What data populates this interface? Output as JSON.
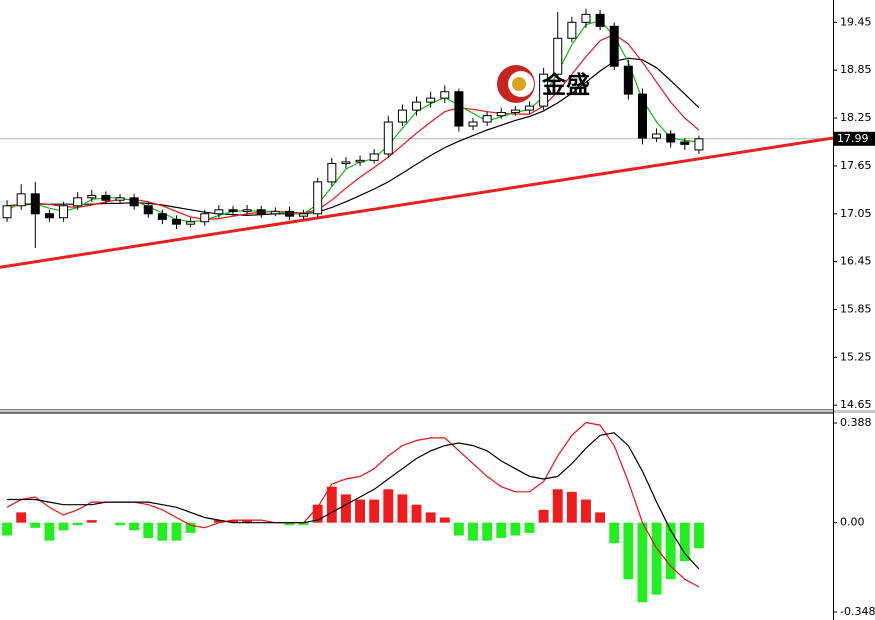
{
  "chart_data": [
    {
      "type": "candlestick",
      "open": [
        17.0,
        17.15,
        17.3,
        17.05,
        17.0,
        17.15,
        17.25,
        17.28,
        17.22,
        17.25,
        17.15,
        17.05,
        16.98,
        16.92,
        16.95,
        17.05,
        17.1,
        17.08,
        17.1,
        17.05,
        17.08,
        17.02,
        17.05,
        17.45,
        17.68,
        17.7,
        17.72,
        17.8,
        18.2,
        18.35,
        18.45,
        18.5,
        18.58,
        18.15,
        18.2,
        18.28,
        18.32,
        18.35,
        18.4,
        18.8,
        19.25,
        19.45,
        19.55,
        19.4,
        18.9,
        18.55,
        18.0,
        18.05,
        17.95,
        17.85
      ],
      "high": [
        17.22,
        17.42,
        17.45,
        17.1,
        17.2,
        17.32,
        17.35,
        17.33,
        17.3,
        17.3,
        17.2,
        17.1,
        17.03,
        17.0,
        17.1,
        17.16,
        17.15,
        17.16,
        17.15,
        17.13,
        17.14,
        17.1,
        17.5,
        17.75,
        17.76,
        17.78,
        17.86,
        18.28,
        18.42,
        18.52,
        18.58,
        18.66,
        18.62,
        18.25,
        18.33,
        18.38,
        18.4,
        18.46,
        18.88,
        19.58,
        19.52,
        19.62,
        19.6,
        19.45,
        18.98,
        18.62,
        18.12,
        18.1,
        18.0,
        18.03
      ],
      "low": [
        16.95,
        17.1,
        16.62,
        16.95,
        16.95,
        17.1,
        17.2,
        17.17,
        17.18,
        17.1,
        17.0,
        16.92,
        16.86,
        16.88,
        16.9,
        17.0,
        17.03,
        17.04,
        17.0,
        17.02,
        16.97,
        16.98,
        17.0,
        17.4,
        17.62,
        17.65,
        17.68,
        17.75,
        18.15,
        18.28,
        18.38,
        18.44,
        18.08,
        18.1,
        18.15,
        18.24,
        18.28,
        18.3,
        18.35,
        18.75,
        19.2,
        19.38,
        19.35,
        18.85,
        18.48,
        17.92,
        17.95,
        17.88,
        17.85,
        17.8
      ],
      "close": [
        17.15,
        17.3,
        17.05,
        17.0,
        17.15,
        17.25,
        17.28,
        17.22,
        17.25,
        17.15,
        17.05,
        16.98,
        16.92,
        16.95,
        17.05,
        17.1,
        17.08,
        17.1,
        17.05,
        17.08,
        17.02,
        17.05,
        17.45,
        17.68,
        17.7,
        17.72,
        17.8,
        18.2,
        18.35,
        18.45,
        18.5,
        18.58,
        18.15,
        18.2,
        18.28,
        18.32,
        18.35,
        18.4,
        18.8,
        19.25,
        19.45,
        19.55,
        19.4,
        18.9,
        18.55,
        18.0,
        18.05,
        17.95,
        17.92,
        17.99
      ],
      "up_color": "#ffffff",
      "down_color": "#000000",
      "overlays": [
        {
          "color": "#000000",
          "values": [
            17.15,
            17.16,
            17.17,
            17.17,
            17.17,
            17.17,
            17.17,
            17.18,
            17.18,
            17.19,
            17.18,
            17.16,
            17.13,
            17.1,
            17.07,
            17.05,
            17.04,
            17.03,
            17.04,
            17.05,
            17.05,
            17.05,
            17.07,
            17.13,
            17.2,
            17.28,
            17.36,
            17.45,
            17.56,
            17.67,
            17.78,
            17.88,
            17.96,
            18.03,
            18.1,
            18.16,
            18.22,
            18.27,
            18.34,
            18.44,
            18.56,
            18.7,
            18.84,
            18.96,
            19.0,
            18.98,
            18.88,
            18.72,
            18.55,
            18.38
          ]
        },
        {
          "color": "#ee1111",
          "values": [
            17.15,
            17.17,
            17.18,
            17.17,
            17.14,
            17.13,
            17.16,
            17.2,
            17.23,
            17.23,
            17.2,
            17.15,
            17.08,
            17.01,
            16.98,
            16.99,
            17.02,
            17.05,
            17.07,
            17.08,
            17.07,
            17.06,
            17.1,
            17.22,
            17.37,
            17.51,
            17.63,
            17.76,
            17.91,
            18.06,
            18.2,
            18.33,
            18.38,
            18.36,
            18.33,
            18.31,
            18.3,
            18.3,
            18.4,
            18.58,
            18.8,
            19.02,
            19.22,
            19.3,
            19.18,
            18.95,
            18.7,
            18.45,
            18.25,
            18.1
          ]
        },
        {
          "color": "#11bb11",
          "values": [
            17.1,
            17.18,
            17.17,
            17.12,
            17.08,
            17.13,
            17.23,
            17.25,
            17.25,
            17.21,
            17.14,
            17.06,
            16.98,
            16.95,
            16.97,
            17.03,
            17.08,
            17.09,
            17.08,
            17.08,
            17.05,
            17.05,
            17.17,
            17.39,
            17.61,
            17.7,
            17.74,
            17.91,
            18.12,
            18.33,
            18.43,
            18.51,
            18.41,
            18.31,
            18.21,
            18.27,
            18.32,
            18.36,
            18.52,
            18.82,
            19.17,
            19.42,
            19.47,
            19.28,
            18.95,
            18.48,
            18.2,
            18.0,
            17.97,
            17.95
          ]
        }
      ],
      "trendline": {
        "color": "#e8201e",
        "values": [
          16.38,
          18.0
        ]
      },
      "current_price": 17.99,
      "watermark": "金盛",
      "ylim": [
        14.59,
        19.73
      ],
      "yticks": [
        19.45,
        18.85,
        18.25,
        17.65,
        17.05,
        16.45,
        15.85,
        15.25,
        14.65
      ]
    },
    {
      "type": "macd",
      "histogram": [
        -0.05,
        0.04,
        -0.02,
        -0.07,
        -0.03,
        -0.01,
        0.01,
        0.0,
        -0.01,
        -0.03,
        -0.06,
        -0.07,
        -0.07,
        -0.04,
        0.0,
        0.01,
        0.01,
        0.01,
        0.0,
        0.0,
        -0.01,
        -0.01,
        0.07,
        0.14,
        0.11,
        0.09,
        0.09,
        0.13,
        0.11,
        0.07,
        0.04,
        0.02,
        -0.05,
        -0.07,
        -0.07,
        -0.06,
        -0.05,
        -0.04,
        0.05,
        0.13,
        0.12,
        0.09,
        0.04,
        -0.08,
        -0.22,
        -0.31,
        -0.28,
        -0.22,
        -0.15,
        -0.1
      ],
      "positive_color": "#ee1c1c",
      "negative_color": "#22ee22",
      "lines": [
        {
          "color": "#ee1111",
          "values": [
            0.06,
            0.09,
            0.1,
            0.06,
            0.03,
            0.05,
            0.08,
            0.08,
            0.08,
            0.08,
            0.07,
            0.05,
            0.02,
            -0.01,
            -0.02,
            0.0,
            0.01,
            0.01,
            0.01,
            0.0,
            0.0,
            0.0,
            0.06,
            0.15,
            0.17,
            0.18,
            0.21,
            0.26,
            0.3,
            0.32,
            0.33,
            0.33,
            0.28,
            0.23,
            0.18,
            0.14,
            0.12,
            0.12,
            0.16,
            0.26,
            0.34,
            0.39,
            0.38,
            0.3,
            0.16,
            0.0,
            -0.1,
            -0.17,
            -0.22,
            -0.25
          ]
        },
        {
          "color": "#000000",
          "values": [
            0.09,
            0.09,
            0.09,
            0.08,
            0.07,
            0.07,
            0.07,
            0.08,
            0.08,
            0.08,
            0.08,
            0.07,
            0.06,
            0.04,
            0.02,
            0.01,
            0.0,
            0.0,
            0.0,
            0.0,
            0.0,
            0.0,
            0.01,
            0.04,
            0.07,
            0.1,
            0.13,
            0.17,
            0.21,
            0.25,
            0.28,
            0.3,
            0.31,
            0.3,
            0.28,
            0.24,
            0.21,
            0.18,
            0.17,
            0.18,
            0.23,
            0.29,
            0.34,
            0.35,
            0.3,
            0.2,
            0.08,
            -0.03,
            -0.12,
            -0.18
          ]
        }
      ],
      "ylim": [
        -0.379,
        0.427
      ],
      "yticks": [
        0.388,
        {
          "value": 0,
          "label": "0.00"
        },
        -0.348
      ]
    }
  ]
}
